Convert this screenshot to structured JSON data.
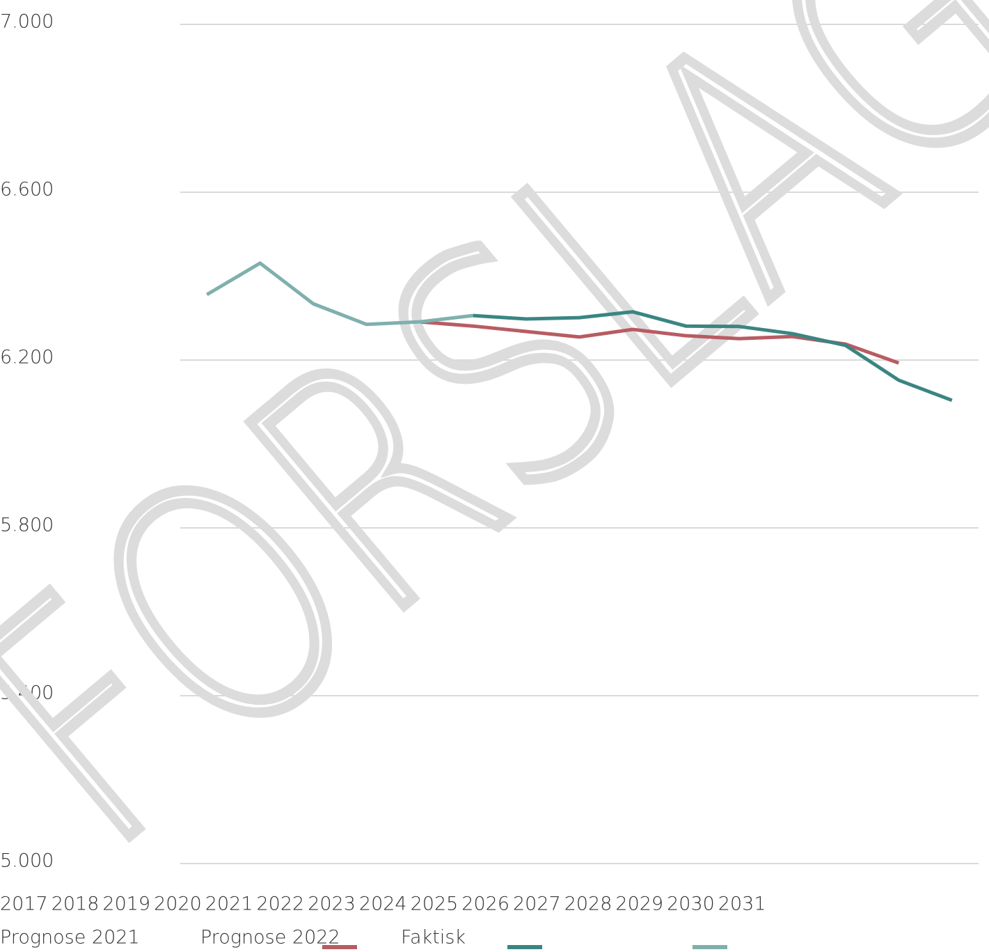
{
  "chart_data": {
    "type": "line",
    "watermark": "FORSLAG",
    "categories": [
      "2017",
      "2018",
      "2019",
      "2020",
      "2021",
      "2022",
      "2023",
      "2024",
      "2025",
      "2026",
      "2027",
      "2028",
      "2029",
      "2030",
      "2031"
    ],
    "series": [
      {
        "name": "Prognose 2021",
        "color": "#b85c62",
        "values": [
          null,
          null,
          null,
          null,
          6291,
          6281,
          6268,
          6255,
          6273,
          6258,
          6251,
          6256,
          6238,
          6193,
          null
        ]
      },
      {
        "name": "Prognose 2022",
        "color": "#3a8582",
        "values": [
          null,
          null,
          null,
          null,
          null,
          6306,
          6298,
          6301,
          6315,
          6281,
          6280,
          6263,
          6235,
          6152,
          6104
        ]
      },
      {
        "name": "Faktisk",
        "color": "#7fb0ad",
        "values": [
          6356,
          6431,
          6334,
          6285,
          6291,
          6306,
          null,
          null,
          null,
          null,
          null,
          null,
          null,
          null,
          null
        ]
      }
    ],
    "ylim": [
      5000,
      7000
    ],
    "yticks": [
      {
        "value": 5000,
        "label": "5.000"
      },
      {
        "value": 5400,
        "label": "5.400"
      },
      {
        "value": 5800,
        "label": "5.800"
      },
      {
        "value": 6200,
        "label": "6.200"
      },
      {
        "value": 6600,
        "label": "6.600"
      },
      {
        "value": 7000,
        "label": "7.000"
      }
    ],
    "grid": true
  }
}
